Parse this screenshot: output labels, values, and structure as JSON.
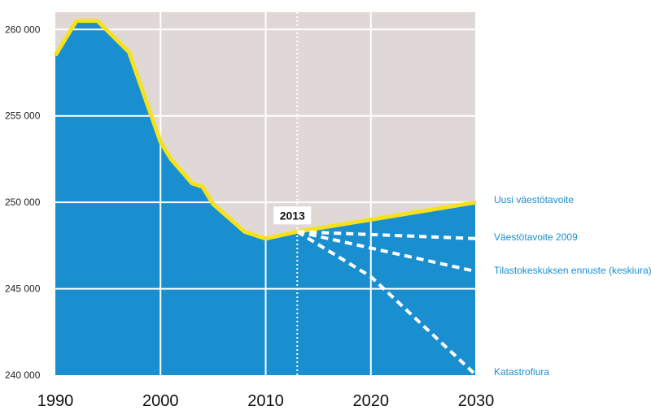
{
  "chart_data": {
    "type": "area",
    "title": "",
    "xlabel": "",
    "ylabel": "",
    "xlim": [
      1990,
      2030
    ],
    "ylim": [
      240000,
      261000
    ],
    "x_ticks": [
      {
        "value": 1990,
        "label": "1990"
      },
      {
        "value": 2000,
        "label": "2000"
      },
      {
        "value": 2010,
        "label": "2010"
      },
      {
        "value": 2020,
        "label": "2020"
      },
      {
        "value": 2030,
        "label": "2030"
      }
    ],
    "y_ticks": [
      {
        "value": 240000,
        "label": "240 000"
      },
      {
        "value": 245000,
        "label": "245 000"
      },
      {
        "value": 250000,
        "label": "250 000"
      },
      {
        "value": 255000,
        "label": "255 000"
      },
      {
        "value": 260000,
        "label": "260 000"
      }
    ],
    "grid": true,
    "colors": {
      "area": "#1a8fd0",
      "background": "#e0d8d6",
      "history_line": "#f7e11b",
      "projection_line": "#ffffff",
      "grid": "#ffffff"
    },
    "history": {
      "x": [
        1990,
        1992,
        1994,
        1997,
        2000,
        2001,
        2003,
        2004,
        2005,
        2008,
        2010,
        2013
      ],
      "y": [
        258500,
        260500,
        260500,
        258700,
        253500,
        252500,
        251100,
        250900,
        249900,
        248300,
        247900,
        248300
      ]
    },
    "marker": {
      "year": 2013,
      "label": "2013"
    },
    "projections": [
      {
        "name": "Uusi väestötavoite",
        "style": "solid",
        "x": [
          2013,
          2030
        ],
        "y": [
          248300,
          250000
        ]
      },
      {
        "name": "Väestötavoite 2009",
        "style": "dashed",
        "x": [
          2013,
          2030
        ],
        "y": [
          248300,
          247900
        ]
      },
      {
        "name": "Tilastokeskuksen ennuste (keskiura)",
        "style": "dashed",
        "x": [
          2013,
          2030
        ],
        "y": [
          248300,
          246000
        ]
      },
      {
        "name": "Katastrofiura",
        "style": "dashed",
        "x": [
          2013,
          2020,
          2030
        ],
        "y": [
          248300,
          245700,
          240000
        ]
      }
    ]
  }
}
